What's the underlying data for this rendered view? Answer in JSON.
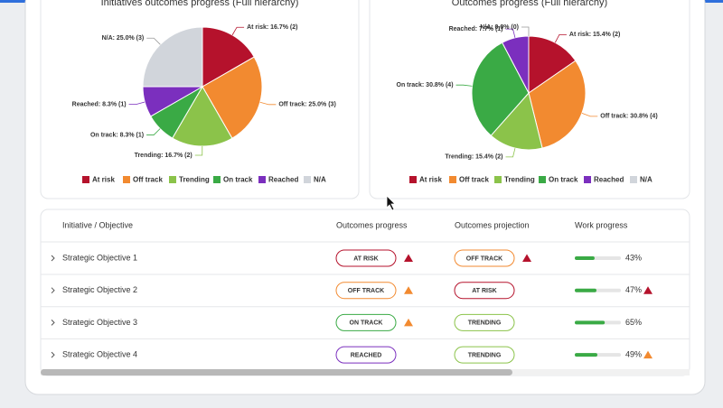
{
  "chart_data": [
    {
      "type": "pie",
      "title": "Initiatives outcomes progress (Full hierarchy)",
      "categories": [
        "At risk",
        "Off track",
        "Trending",
        "On track",
        "Reached",
        "N/A"
      ],
      "values": [
        16.7,
        25.0,
        16.7,
        8.3,
        8.3,
        25.0
      ],
      "value_labels": [
        "At risk: 16.7% (2)",
        "Off track: 25.0% (3)",
        "Trending: 16.7% (2)",
        "On track: 8.3% (1)",
        "Reached: 8.3% (1)",
        "N/A: 25.0% (3)"
      ],
      "colors": [
        "#b5122c",
        "#f28a30",
        "#8bc34a",
        "#3aaa45",
        "#7b2fbe",
        "#d1d5db"
      ]
    },
    {
      "type": "pie",
      "title": "Outcomes progress (Full hierarchy)",
      "categories": [
        "At risk",
        "Off track",
        "Trending",
        "On track",
        "Reached",
        "N/A"
      ],
      "values": [
        15.4,
        30.8,
        15.4,
        30.8,
        7.7,
        0.0
      ],
      "value_labels": [
        "At risk: 15.4% (2)",
        "Off track: 30.8% (4)",
        "Trending: 15.4% (2)",
        "On track: 30.8% (4)",
        "Reached: 7.7% (1)",
        "N/A: 0.0% (0)"
      ],
      "colors": [
        "#b5122c",
        "#f28a30",
        "#8bc34a",
        "#3aaa45",
        "#7b2fbe",
        "#d1d5db"
      ]
    }
  ],
  "table": {
    "headers": [
      "Initiative / Objective",
      "Outcomes progress",
      "Outcomes projection",
      "Work progress"
    ],
    "rows": [
      {
        "name": "Strategic Objective 1",
        "progress": {
          "label": "AT RISK",
          "color": "#b5122c",
          "warn": "#b5122c"
        },
        "projection": {
          "label": "OFF TRACK",
          "color": "#f28a30",
          "warn": "#b5122c"
        },
        "work": 43,
        "work_label": "43%",
        "work_warn": null
      },
      {
        "name": "Strategic Objective 2",
        "progress": {
          "label": "OFF TRACK",
          "color": "#f28a30",
          "warn": "#f28a30"
        },
        "projection": {
          "label": "AT RISK",
          "color": "#b5122c",
          "warn": null
        },
        "work": 47,
        "work_label": "47%",
        "work_warn": "#b5122c"
      },
      {
        "name": "Strategic Objective 3",
        "progress": {
          "label": "ON TRACK",
          "color": "#3aaa45",
          "warn": "#f28a30"
        },
        "projection": {
          "label": "TRENDING",
          "color": "#8bc34a",
          "warn": null
        },
        "work": 65,
        "work_label": "65%",
        "work_warn": null
      },
      {
        "name": "Strategic Objective 4",
        "progress": {
          "label": "REACHED",
          "color": "#7b2fbe",
          "warn": null
        },
        "projection": {
          "label": "TRENDING",
          "color": "#8bc34a",
          "warn": null
        },
        "work": 49,
        "work_label": "49%",
        "work_warn": "#f28a30"
      }
    ]
  }
}
